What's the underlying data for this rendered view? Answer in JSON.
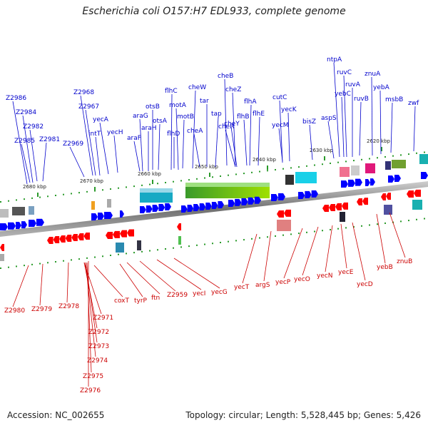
{
  "title": "Escherichia coli O157:H7 EDL933, complete genome",
  "accession": "Accession: NC_002655",
  "info": "Topology: circular; Length: 5,528,445 bp; Genes: 5,426",
  "kbp_ticks": [
    "2680 kbp",
    "2670 kbp",
    "2660 kbp",
    "2650 kbp",
    "2640 kbp",
    "2630 kbp",
    "2620 kbp"
  ],
  "blue_labels": [
    "Z2986",
    "Z2984",
    "Z2982",
    "Z2985",
    "Z2981",
    "Z2968",
    "Z2967",
    "Z2969",
    "intT",
    "yecA",
    "yecH",
    "araG",
    "araF",
    "araH",
    "otsB",
    "otsA",
    "flhC",
    "motA",
    "motB",
    "flhD",
    "cheW",
    "cheA",
    "tar",
    "cheB",
    "tap",
    "cheZ",
    "cheY",
    "cheR",
    "flhA",
    "flhB",
    "flhE",
    "cutC",
    "yecK",
    "yecM",
    "bisZ",
    "aspS",
    "ntpA",
    "ruvC",
    "ruvA",
    "yebC",
    "ruvB",
    "znuA",
    "yebA",
    "msbB",
    "zwf"
  ],
  "red_labels": [
    "Z2980",
    "Z2979",
    "Z2978",
    "Z2971",
    "Z2972",
    "Z2973",
    "Z2974",
    "Z2975",
    "Z2976",
    "coxT",
    "tyrP",
    "ftn",
    "Z2959",
    "yecI",
    "yecG",
    "yecT",
    "argS",
    "yecP",
    "yecO",
    "yecN",
    "yecE",
    "yecD",
    "yebB",
    "znuB"
  ],
  "colors": {
    "forward": "#0000ff",
    "reverse": "#ff0000",
    "backbone": "#888888"
  }
}
